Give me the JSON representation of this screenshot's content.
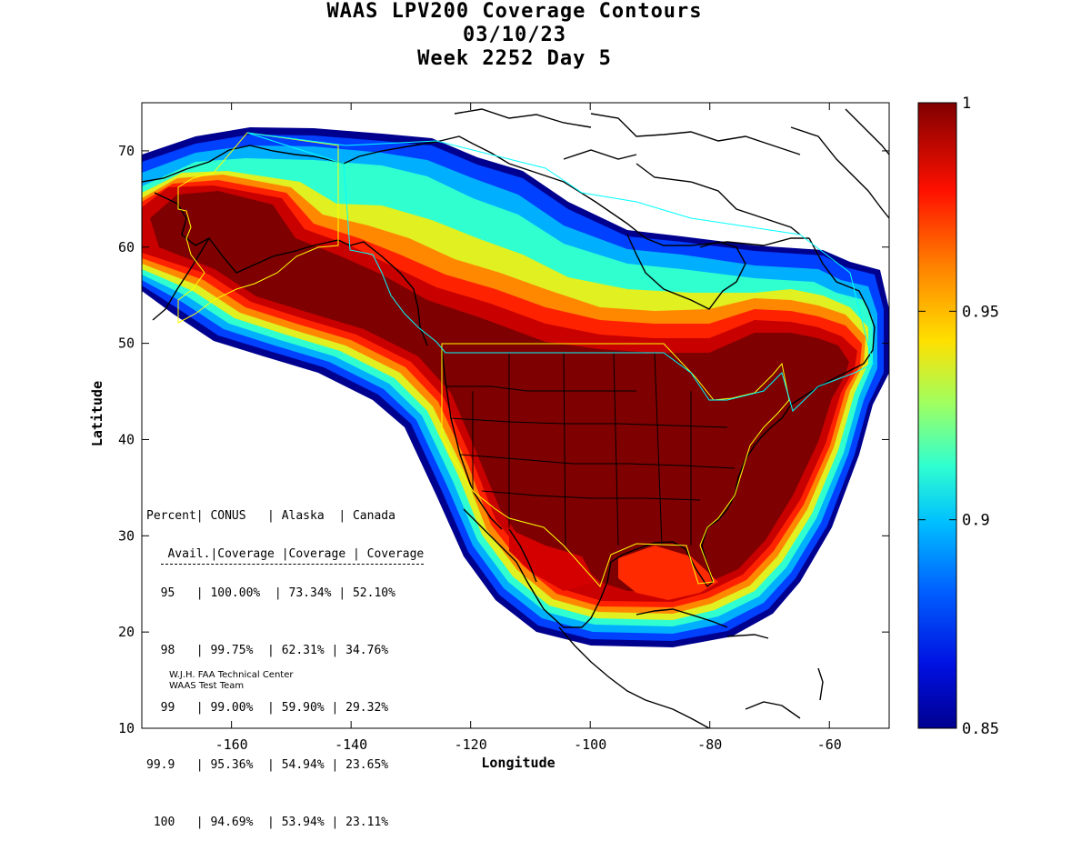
{
  "title": {
    "line1": "WAAS LPV200 Coverage Contours",
    "line2": "03/10/23",
    "line3": "Week 2252 Day 5"
  },
  "axes": {
    "xlabel": "Longitude",
    "ylabel": "Latitude",
    "x_ticks": [
      "-160",
      "-140",
      "-120",
      "-100",
      "-80",
      "-60"
    ],
    "y_ticks": [
      "10",
      "20",
      "30",
      "40",
      "50",
      "60",
      "70"
    ]
  },
  "colorbar": {
    "ticks": [
      "0.85",
      "0.9",
      "0.95",
      "1"
    ],
    "colormap": "jet",
    "min": 0.85,
    "max": 1
  },
  "table": {
    "header1": "Percent| CONUS   | Alaska  | Canada",
    "header2": " Avail.|Coverage |Coverage | Coverage",
    "rows": [
      "  95   | 100.00%  | 73.34% | 52.10%",
      "  98   | 99.75%  | 62.31% | 34.76%",
      "  99   | 99.00%  | 59.90% | 29.32%",
      "99.9   | 95.36%  | 54.94% | 23.65%",
      " 100   | 94.69%  | 53.94% | 23.11%"
    ]
  },
  "credits": {
    "line1": "W.J.H. FAA Technical Center",
    "line2": "WAAS Test Team"
  },
  "chart_data": {
    "type": "heatmap",
    "xlim": [
      -175,
      -50
    ],
    "ylim": [
      10,
      75
    ],
    "xlabel": "Longitude",
    "ylabel": "Latitude",
    "colorbar_range": [
      0.85,
      1
    ],
    "colors": {
      "c100": "#7f0000",
      "c99": "#cc0000",
      "c98": "#ff3300",
      "c97": "#ff8800",
      "c96": "#ffd000",
      "c95": "#d8ff28",
      "c93": "#40ffbf",
      "c92": "#00e0ff",
      "c90": "#00a0ff",
      "c88": "#0050ff",
      "c86": "#0010d0",
      "c85": "#00008f",
      "boundary_yellow": "#ffff00",
      "boundary_cyan": "#00ffff"
    }
  }
}
